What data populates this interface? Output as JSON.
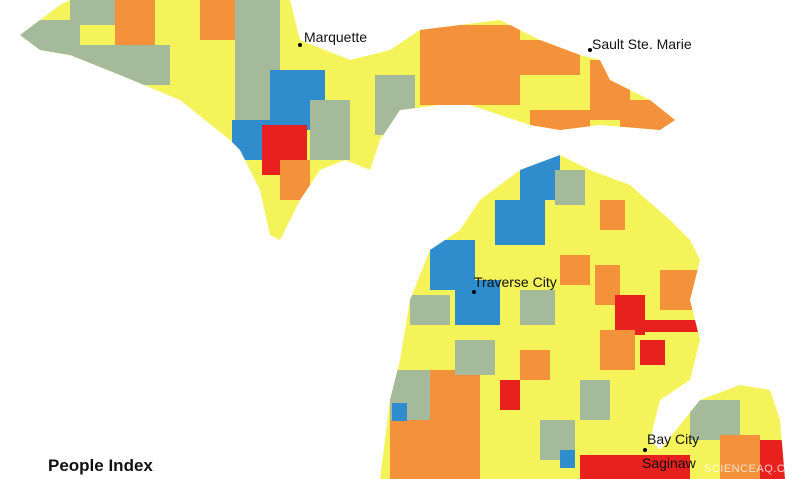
{
  "title": "People Index",
  "cities": [
    {
      "label": "Marquette"
    },
    {
      "label": "Sault Ste. Marie"
    },
    {
      "label": "Traverse City"
    },
    {
      "label": "Bay City"
    },
    {
      "label": "Saginaw"
    }
  ],
  "watermark": "SCIENCEAQ.COM"
}
